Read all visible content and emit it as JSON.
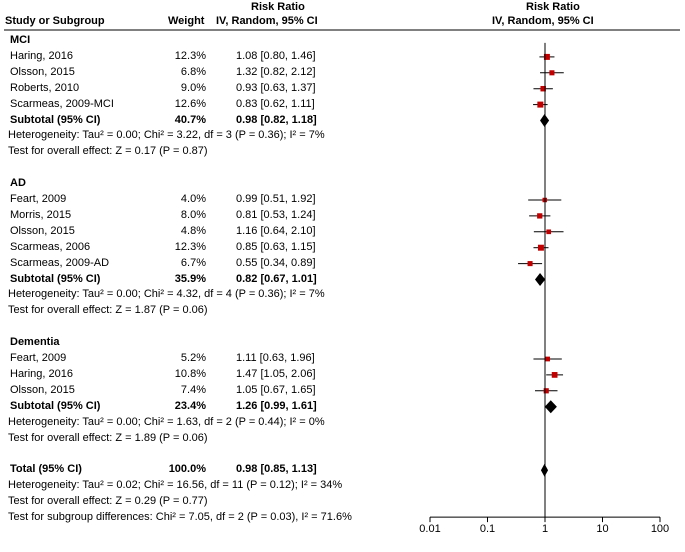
{
  "header": {
    "study_col": "Study or Subgroup",
    "weight_col": "Weight",
    "rr_title": "Risk Ratio",
    "rr_method": "IV, Random, 95% CI",
    "plot_title": "Risk Ratio",
    "plot_method": "IV, Random, 95% CI"
  },
  "chart_data": {
    "type": "forest",
    "scale": "log",
    "xlim": [
      0.01,
      100
    ],
    "ticks": [
      {
        "v": 0.01,
        "label": "0.01"
      },
      {
        "v": 0.1,
        "label": "0.1"
      },
      {
        "v": 1,
        "label": "1"
      },
      {
        "v": 10,
        "label": "10"
      },
      {
        "v": 100,
        "label": "100"
      }
    ],
    "null_line": 1,
    "rows": [
      {
        "kind": "group",
        "label": "MCI"
      },
      {
        "kind": "study",
        "label": "Haring, 2016",
        "weight": "12.3%",
        "ci": "1.08 [0.80, 1.46]",
        "est": 1.08,
        "lo": 0.8,
        "hi": 1.46
      },
      {
        "kind": "study",
        "label": "Olsson, 2015",
        "weight": "6.8%",
        "ci": "1.32 [0.82, 2.12]",
        "est": 1.32,
        "lo": 0.82,
        "hi": 2.12
      },
      {
        "kind": "study",
        "label": "Roberts, 2010",
        "weight": "9.0%",
        "ci": "0.93 [0.63, 1.37]",
        "est": 0.93,
        "lo": 0.63,
        "hi": 1.37
      },
      {
        "kind": "study",
        "label": "Scarmeas, 2009-MCI",
        "weight": "12.6%",
        "ci": "0.83 [0.62, 1.11]",
        "est": 0.83,
        "lo": 0.62,
        "hi": 1.11
      },
      {
        "kind": "subtotal",
        "label": "Subtotal (95% CI)",
        "weight": "40.7%",
        "ci": "0.98 [0.82, 1.18]",
        "est": 0.98,
        "lo": 0.82,
        "hi": 1.18
      },
      {
        "kind": "note",
        "label": "Heterogeneity: Tau² = 0.00; Chi² = 3.22, df = 3 (P = 0.36); I² = 7%"
      },
      {
        "kind": "note",
        "label": "Test for overall effect: Z = 0.17 (P = 0.87)"
      },
      {
        "kind": "blank"
      },
      {
        "kind": "group",
        "label": "AD"
      },
      {
        "kind": "study",
        "label": "Feart, 2009",
        "weight": "4.0%",
        "ci": "0.99 [0.51, 1.92]",
        "est": 0.99,
        "lo": 0.51,
        "hi": 1.92
      },
      {
        "kind": "study",
        "label": "Morris, 2015",
        "weight": "8.0%",
        "ci": "0.81 [0.53, 1.24]",
        "est": 0.81,
        "lo": 0.53,
        "hi": 1.24
      },
      {
        "kind": "study",
        "label": "Olsson, 2015",
        "weight": "4.8%",
        "ci": "1.16 [0.64, 2.10]",
        "est": 1.16,
        "lo": 0.64,
        "hi": 2.1
      },
      {
        "kind": "study",
        "label": "Scarmeas, 2006",
        "weight": "12.3%",
        "ci": "0.85 [0.63, 1.15]",
        "est": 0.85,
        "lo": 0.63,
        "hi": 1.15
      },
      {
        "kind": "study",
        "label": "Scarmeas, 2009-AD",
        "weight": "6.7%",
        "ci": "0.55 [0.34, 0.89]",
        "est": 0.55,
        "lo": 0.34,
        "hi": 0.89
      },
      {
        "kind": "subtotal",
        "label": "Subtotal (95% CI)",
        "weight": "35.9%",
        "ci": "0.82 [0.67, 1.01]",
        "est": 0.82,
        "lo": 0.67,
        "hi": 1.01
      },
      {
        "kind": "note",
        "label": "Heterogeneity: Tau² = 0.00; Chi² = 4.32, df = 4 (P = 0.36); I² = 7%"
      },
      {
        "kind": "note",
        "label": "Test for overall effect: Z = 1.87 (P = 0.06)"
      },
      {
        "kind": "blank"
      },
      {
        "kind": "group",
        "label": "Dementia"
      },
      {
        "kind": "study",
        "label": "Feart, 2009",
        "weight": "5.2%",
        "ci": "1.11 [0.63, 1.96]",
        "est": 1.11,
        "lo": 0.63,
        "hi": 1.96
      },
      {
        "kind": "study",
        "label": "Haring, 2016",
        "weight": "10.8%",
        "ci": "1.47 [1.05, 2.06]",
        "est": 1.47,
        "lo": 1.05,
        "hi": 2.06
      },
      {
        "kind": "study",
        "label": "Olsson, 2015",
        "weight": "7.4%",
        "ci": "1.05 [0.67, 1.65]",
        "est": 1.05,
        "lo": 0.67,
        "hi": 1.65
      },
      {
        "kind": "subtotal",
        "label": "Subtotal (95% CI)",
        "weight": "23.4%",
        "ci": "1.26 [0.99, 1.61]",
        "est": 1.26,
        "lo": 0.99,
        "hi": 1.61
      },
      {
        "kind": "note",
        "label": "Heterogeneity: Tau² = 0.00; Chi² = 1.63, df = 2 (P = 0.44); I² = 0%"
      },
      {
        "kind": "note",
        "label": "Test for overall effect: Z = 1.89 (P = 0.06)"
      },
      {
        "kind": "blank"
      },
      {
        "kind": "total",
        "label": "Total (95% CI)",
        "weight": "100.0%",
        "ci": "0.98 [0.85, 1.13]",
        "est": 0.98,
        "lo": 0.85,
        "hi": 1.13
      },
      {
        "kind": "note",
        "label": "Heterogeneity: Tau² = 0.02; Chi² = 16.56, df = 11 (P = 0.12); I² = 34%"
      },
      {
        "kind": "note",
        "label": "Test for overall effect: Z = 0.29 (P = 0.77)"
      },
      {
        "kind": "note",
        "label": "Test for subgroup differences: Chi² = 7.05, df = 2 (P = 0.03), I² = 71.6%"
      }
    ]
  },
  "colors": {
    "ink": "#000000",
    "marker": "#c00000",
    "line": "#000000"
  }
}
